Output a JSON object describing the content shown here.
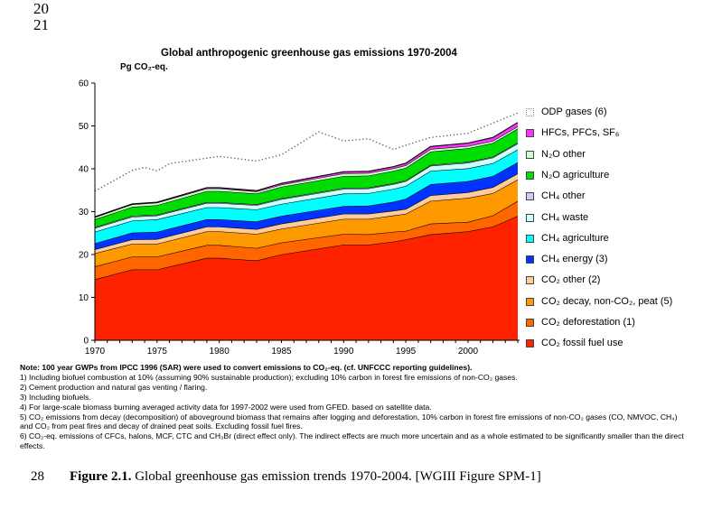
{
  "page": {
    "line_numbers": [
      "20",
      "21",
      "28"
    ]
  },
  "caption": {
    "label": "Figure 2.1.",
    "text": " Global greenhouse gas emission trends 1970-2004. [WGIII Figure SPM-1]"
  },
  "notes": {
    "head": "Note: 100 year GWPs from IPCC 1996 (SAR) were used to convert emissions to CO₂-eq. (cf. UNFCCC reporting guidelines).",
    "items": [
      "1) Including biofuel combustion at 10% (assuming 90% sustainable production); excluding 10% carbon in forest fire emissions of non-CO₂ gases.",
      "2) Cement production and natural gas venting / flaring.",
      "3) Including biofuels.",
      "4) For large-scale biomass burning averaged activity data for 1997-2002 were used from GFED. based on satellite data.",
      "5) CO₂ emissions from decay (decomposition) of aboveground biomass that remains after logging and deforestation, 10% carbon in forest fire emissions of non-CO₂ gases (CO, NMVOC, CH₄) and CO₂ from peat fires and decay of drained peat soils. Excluding fossil fuel fires.",
      "6) CO₂-eq. emissions of CFCs, halons, MCF, CTC and CH₃Br (direct effect only). The indirect effects are much more uncertain and as a whole estimated to be significantly smaller than the direct effects."
    ]
  },
  "chart_data": {
    "type": "area",
    "stacked": true,
    "title": "Global anthropogenic greenhouse gas emissions 1970-2004",
    "ylabel": "Pg CO₂-eq.",
    "xlabel": "",
    "xlim": [
      1970,
      2004
    ],
    "ylim": [
      0,
      60
    ],
    "yticks": [
      0,
      10,
      20,
      30,
      40,
      50,
      60
    ],
    "xticks": [
      1970,
      1975,
      1980,
      1985,
      1990,
      1995,
      2000
    ],
    "grid": false,
    "legend_position": "right",
    "x": [
      1970,
      1973,
      1975,
      1979,
      1980,
      1983,
      1985,
      1990,
      1992,
      1994,
      1995,
      1997,
      2000,
      2002,
      2004
    ],
    "series": [
      {
        "name": "CO₂ fossil fuel use",
        "color": "#ff2200",
        "values": [
          14.2,
          16.5,
          16.5,
          19.2,
          19.2,
          18.6,
          20.0,
          22.3,
          22.3,
          23.0,
          23.5,
          24.7,
          25.4,
          26.5,
          29.0
        ]
      },
      {
        "name": "CO₂ deforestation (1)",
        "color": "#ff6600",
        "values": [
          3.0,
          3.0,
          3.0,
          3.0,
          3.0,
          2.9,
          2.8,
          2.5,
          2.4,
          2.3,
          2.0,
          2.5,
          2.2,
          2.6,
          3.5
        ]
      },
      {
        "name": "CO₂ decay, non-CO₂, peat (5)",
        "color": "#ff9900",
        "values": [
          3.1,
          3.0,
          3.0,
          3.2,
          3.2,
          3.3,
          3.2,
          3.5,
          3.6,
          3.8,
          4.0,
          5.3,
          5.6,
          5.2,
          5.0
        ]
      },
      {
        "name": "CO₂ other (2)",
        "color": "#ffcc99",
        "values": [
          0.9,
          1.0,
          1.1,
          1.1,
          1.1,
          1.1,
          1.2,
          1.2,
          1.2,
          1.1,
          1.1,
          1.3,
          1.3,
          1.4,
          1.4
        ]
      },
      {
        "name": "CH₄ energy (3)",
        "color": "#0033ff",
        "values": [
          1.4,
          1.6,
          1.7,
          1.7,
          1.7,
          1.8,
          1.8,
          1.8,
          1.9,
          2.1,
          2.4,
          2.6,
          2.6,
          2.6,
          2.6
        ]
      },
      {
        "name": "CH₄ agriculture",
        "color": "#00ffff",
        "values": [
          2.7,
          2.8,
          2.9,
          2.8,
          2.8,
          2.8,
          2.8,
          2.9,
          2.9,
          3.0,
          3.0,
          3.1,
          3.0,
          3.0,
          3.0
        ]
      },
      {
        "name": "CH₄ waste",
        "color": "#ccffff",
        "values": [
          0.9,
          0.9,
          0.9,
          1.0,
          1.0,
          1.0,
          1.1,
          1.1,
          1.1,
          1.1,
          1.1,
          1.2,
          1.3,
          1.3,
          1.4
        ]
      },
      {
        "name": "CH₄ other",
        "color": "#ccccff",
        "values": [
          0.2,
          0.2,
          0.2,
          0.2,
          0.2,
          0.2,
          0.2,
          0.2,
          0.2,
          0.2,
          0.2,
          0.2,
          0.2,
          0.2,
          0.2
        ]
      },
      {
        "name": "N₂O agriculture",
        "color": "#00dd00",
        "values": [
          1.8,
          2.1,
          2.2,
          2.6,
          2.6,
          2.5,
          2.7,
          2.8,
          2.8,
          2.9,
          2.9,
          3.1,
          3.2,
          3.2,
          3.3
        ]
      },
      {
        "name": "N₂O other",
        "color": "#ccffcc",
        "values": [
          0.5,
          0.6,
          0.6,
          0.6,
          0.6,
          0.5,
          0.5,
          0.6,
          0.6,
          0.6,
          0.6,
          0.6,
          0.5,
          0.5,
          0.5
        ]
      },
      {
        "name": "HFCs, PFCs, SF₆",
        "color": "#ff33ff",
        "values": [
          0.1,
          0.1,
          0.1,
          0.2,
          0.2,
          0.2,
          0.3,
          0.4,
          0.4,
          0.4,
          0.5,
          0.6,
          0.7,
          0.8,
          0.9
        ]
      }
    ],
    "overlay_line": {
      "name": "ODP gases (6)",
      "style": "dotted",
      "color": "#555555",
      "x": [
        1970,
        1973,
        1974,
        1975,
        1976,
        1980,
        1983,
        1985,
        1988,
        1990,
        1992,
        1994,
        1995,
        1997,
        2000,
        2004
      ],
      "values": [
        34.8,
        39.6,
        40.3,
        39.5,
        41.2,
        42.9,
        41.8,
        43.3,
        48.6,
        46.5,
        47.0,
        44.5,
        45.5,
        47.3,
        48.3,
        53.0
      ]
    },
    "legend": [
      {
        "label": "ODP gases (6)",
        "swatch": "dotted"
      },
      {
        "label": "HFCs, PFCs, SF₆",
        "color": "#ff33ff"
      },
      {
        "label": "N₂O other",
        "color": "#ccffcc"
      },
      {
        "label": "N₂O agriculture",
        "color": "#00dd00"
      },
      {
        "label": "CH₄ other",
        "color": "#ccccff"
      },
      {
        "label": "CH₄ waste",
        "color": "#ccffff"
      },
      {
        "label": "CH₄ agriculture",
        "color": "#00ffff"
      },
      {
        "label": "CH₄ energy (3)",
        "color": "#0033ff"
      },
      {
        "label": "CO₂ other (2)",
        "color": "#ffcc99"
      },
      {
        "label": "CO₂ decay, non-CO₂, peat (5)",
        "color": "#ff9900"
      },
      {
        "label": "CO₂ deforestation (1)",
        "color": "#ff6600"
      },
      {
        "label": "CO₂ fossil fuel use",
        "color": "#ff2200"
      }
    ]
  }
}
